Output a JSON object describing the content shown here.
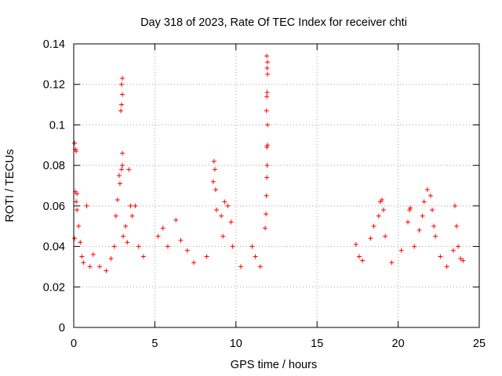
{
  "chart_data": {
    "type": "scatter",
    "title": "Day 318 of 2023, Rate Of TEC Index for receiver chti",
    "xlabel": "GPS time / hours",
    "ylabel": "ROTI / TECUs",
    "xlim": [
      0,
      25
    ],
    "ylim": [
      0,
      0.14
    ],
    "x_ticks": [
      0,
      5,
      10,
      15,
      20,
      25
    ],
    "x_tick_labels": [
      "0",
      "5",
      "10",
      "15",
      "20",
      "25"
    ],
    "y_ticks": [
      0,
      0.02,
      0.04,
      0.06,
      0.08,
      0.1,
      0.12,
      0.14
    ],
    "y_tick_labels": [
      "0",
      "0.02",
      "0.04",
      "0.06",
      "0.08",
      "0.1",
      "0.12",
      "0.14"
    ],
    "grid": true,
    "marker": "+",
    "marker_color": "#ff0000",
    "data_gap_hours": [
      12.0,
      17.3
    ],
    "series": [
      {
        "name": "ROTI",
        "points": [
          [
            0.05,
            0.091
          ],
          [
            0.1,
            0.088
          ],
          [
            0.15,
            0.087
          ],
          [
            0.1,
            0.067
          ],
          [
            0.2,
            0.066
          ],
          [
            0.15,
            0.062
          ],
          [
            0.2,
            0.058
          ],
          [
            0.05,
            0.044
          ],
          [
            0.3,
            0.05
          ],
          [
            0.4,
            0.042
          ],
          [
            0.5,
            0.035
          ],
          [
            0.8,
            0.06
          ],
          [
            0.6,
            0.032
          ],
          [
            1.0,
            0.03
          ],
          [
            1.2,
            0.036
          ],
          [
            1.6,
            0.03
          ],
          [
            2.0,
            0.028
          ],
          [
            2.3,
            0.034
          ],
          [
            2.5,
            0.04
          ],
          [
            2.6,
            0.055
          ],
          [
            2.7,
            0.063
          ],
          [
            2.8,
            0.075
          ],
          [
            2.85,
            0.071
          ],
          [
            2.9,
            0.107
          ],
          [
            2.95,
            0.11
          ],
          [
            3.0,
            0.115
          ],
          [
            2.95,
            0.12
          ],
          [
            3.0,
            0.123
          ],
          [
            3.0,
            0.086
          ],
          [
            3.0,
            0.08
          ],
          [
            2.95,
            0.078
          ],
          [
            3.05,
            0.045
          ],
          [
            3.4,
            0.078
          ],
          [
            3.5,
            0.06
          ],
          [
            3.8,
            0.06
          ],
          [
            4.0,
            0.04
          ],
          [
            3.2,
            0.05
          ],
          [
            3.3,
            0.042
          ],
          [
            3.6,
            0.055
          ],
          [
            4.3,
            0.035
          ],
          [
            5.2,
            0.045
          ],
          [
            5.5,
            0.049
          ],
          [
            5.8,
            0.04
          ],
          [
            6.3,
            0.053
          ],
          [
            6.6,
            0.043
          ],
          [
            7.0,
            0.038
          ],
          [
            7.4,
            0.032
          ],
          [
            8.2,
            0.035
          ],
          [
            8.6,
            0.072
          ],
          [
            8.65,
            0.082
          ],
          [
            8.7,
            0.078
          ],
          [
            8.75,
            0.068
          ],
          [
            8.8,
            0.058
          ],
          [
            9.1,
            0.055
          ],
          [
            9.3,
            0.062
          ],
          [
            9.5,
            0.06
          ],
          [
            9.7,
            0.052
          ],
          [
            9.2,
            0.045
          ],
          [
            9.8,
            0.04
          ],
          [
            10.3,
            0.03
          ],
          [
            11.0,
            0.04
          ],
          [
            11.2,
            0.035
          ],
          [
            11.5,
            0.03
          ],
          [
            11.8,
            0.049
          ],
          [
            11.85,
            0.056
          ],
          [
            11.88,
            0.065
          ],
          [
            11.9,
            0.074
          ],
          [
            11.92,
            0.08
          ],
          [
            11.9,
            0.089
          ],
          [
            11.95,
            0.09
          ],
          [
            11.95,
            0.1
          ],
          [
            11.88,
            0.107
          ],
          [
            11.9,
            0.114
          ],
          [
            11.92,
            0.116
          ],
          [
            11.95,
            0.125
          ],
          [
            11.92,
            0.128
          ],
          [
            11.95,
            0.131
          ],
          [
            11.9,
            0.134
          ],
          [
            17.4,
            0.041
          ],
          [
            17.6,
            0.035
          ],
          [
            17.8,
            0.033
          ],
          [
            18.3,
            0.044
          ],
          [
            18.5,
            0.05
          ],
          [
            18.8,
            0.055
          ],
          [
            18.9,
            0.062
          ],
          [
            19.0,
            0.063
          ],
          [
            19.1,
            0.058
          ],
          [
            19.2,
            0.045
          ],
          [
            19.6,
            0.032
          ],
          [
            20.2,
            0.038
          ],
          [
            20.6,
            0.052
          ],
          [
            20.7,
            0.058
          ],
          [
            20.75,
            0.059
          ],
          [
            21.0,
            0.04
          ],
          [
            21.3,
            0.048
          ],
          [
            21.5,
            0.055
          ],
          [
            21.6,
            0.062
          ],
          [
            21.8,
            0.068
          ],
          [
            22.0,
            0.065
          ],
          [
            22.1,
            0.058
          ],
          [
            22.2,
            0.05
          ],
          [
            22.3,
            0.045
          ],
          [
            22.6,
            0.035
          ],
          [
            23.0,
            0.03
          ],
          [
            23.4,
            0.038
          ],
          [
            23.5,
            0.06
          ],
          [
            23.6,
            0.05
          ],
          [
            23.7,
            0.04
          ],
          [
            23.85,
            0.034
          ],
          [
            24.0,
            0.033
          ]
        ]
      }
    ]
  }
}
